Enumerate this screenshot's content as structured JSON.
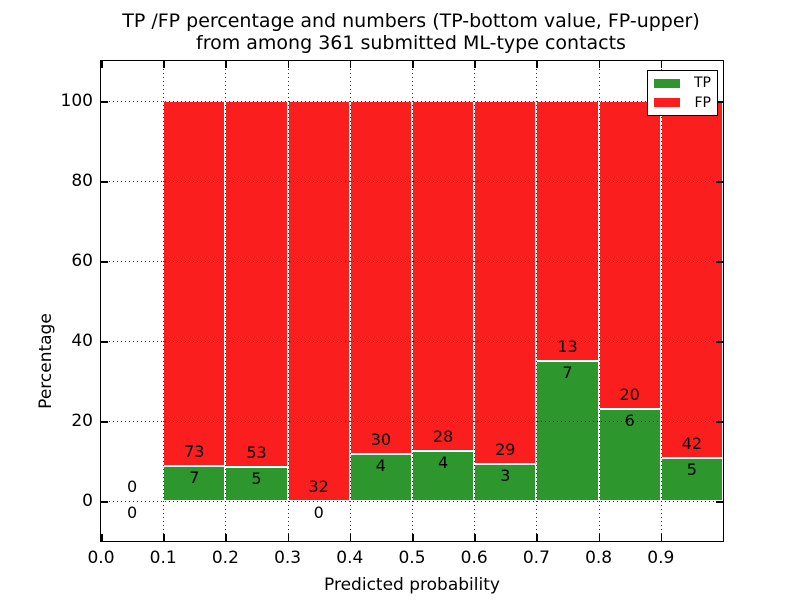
{
  "figure": {
    "title_line1": "TP /FP percentage and numbers (TP-bottom value, FP-upper)",
    "title_line2": "from among 361 submitted ML-type contacts",
    "xlabel": "Predicted probability",
    "ylabel": "Percentage"
  },
  "colors": {
    "tp_green": "#2d962d",
    "fp_red": "#fa1e1e",
    "bar_edge": "#ffffff",
    "grid": "#000000",
    "background": "#ffffff"
  },
  "chart_data": {
    "type": "bar",
    "stacked": true,
    "orientation": "vertical",
    "title": "TP /FP percentage and numbers (TP-bottom value, FP-upper)\nfrom among 361 submitted ML-type contacts",
    "xlabel": "Predicted probability",
    "ylabel": "Percentage",
    "total_contacts": 361,
    "xlim": [
      0.0,
      1.0
    ],
    "ylim": [
      -10,
      110
    ],
    "xtick_values": [
      0.0,
      0.1,
      0.2,
      0.3,
      0.4,
      0.5,
      0.6,
      0.7,
      0.8,
      0.9
    ],
    "xtick_labels": [
      "0.0",
      "0.1",
      "0.2",
      "0.3",
      "0.4",
      "0.5",
      "0.6",
      "0.7",
      "0.8",
      "0.9"
    ],
    "ytick_values": [
      0,
      20,
      40,
      60,
      80,
      100
    ],
    "ytick_labels": [
      "0",
      "20",
      "40",
      "60",
      "80",
      "100"
    ],
    "grid": true,
    "grid_style": "dotted",
    "legend_position": "upper right",
    "series": [
      {
        "name": "TP",
        "color": "#2d962d"
      },
      {
        "name": "FP",
        "color": "#fa1e1e"
      }
    ],
    "bins": [
      {
        "x_start": 0.0,
        "x_end": 0.1,
        "tp_count": 0,
        "fp_count": 0,
        "tp_pct": 0,
        "fp_pct": 0
      },
      {
        "x_start": 0.1,
        "x_end": 0.2,
        "tp_count": 7,
        "fp_count": 73,
        "tp_pct": 8.75,
        "fp_pct": 91.25
      },
      {
        "x_start": 0.2,
        "x_end": 0.3,
        "tp_count": 5,
        "fp_count": 53,
        "tp_pct": 8.62,
        "fp_pct": 91.38
      },
      {
        "x_start": 0.3,
        "x_end": 0.4,
        "tp_count": 0,
        "fp_count": 32,
        "tp_pct": 0,
        "fp_pct": 100
      },
      {
        "x_start": 0.4,
        "x_end": 0.5,
        "tp_count": 4,
        "fp_count": 30,
        "tp_pct": 11.76,
        "fp_pct": 88.24
      },
      {
        "x_start": 0.5,
        "x_end": 0.6,
        "tp_count": 4,
        "fp_count": 28,
        "tp_pct": 12.5,
        "fp_pct": 87.5
      },
      {
        "x_start": 0.6,
        "x_end": 0.7,
        "tp_count": 3,
        "fp_count": 29,
        "tp_pct": 9.38,
        "fp_pct": 90.62
      },
      {
        "x_start": 0.7,
        "x_end": 0.8,
        "tp_count": 7,
        "fp_count": 13,
        "tp_pct": 35.0,
        "fp_pct": 65.0
      },
      {
        "x_start": 0.8,
        "x_end": 0.9,
        "tp_count": 6,
        "fp_count": 20,
        "tp_pct": 23.08,
        "fp_pct": 76.92
      },
      {
        "x_start": 0.9,
        "x_end": 1.0,
        "tp_count": 5,
        "fp_count": 42,
        "tp_pct": 10.64,
        "fp_pct": 89.36
      }
    ]
  }
}
